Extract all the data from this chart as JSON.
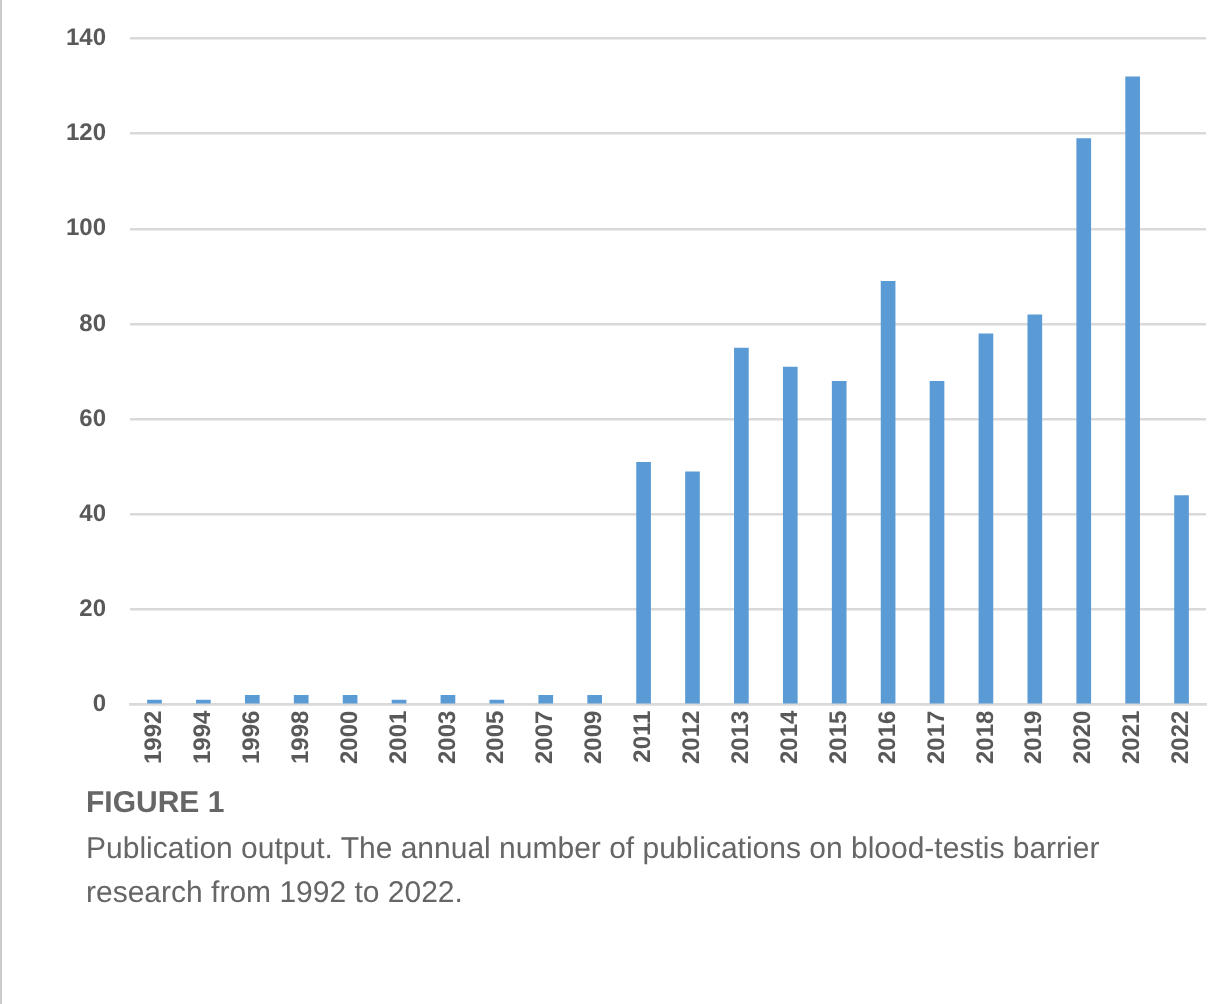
{
  "chart_data": {
    "type": "bar",
    "title": "FIGURE 1",
    "annotations": [
      "Publication output. The annual number of publications on blood-testis barrier research from 1992 to 2022."
    ],
    "categories": [
      "1992",
      "1994",
      "1996",
      "1998",
      "2000",
      "2001",
      "2003",
      "2005",
      "2007",
      "2009",
      "2011",
      "2012",
      "2013",
      "2014",
      "2015",
      "2016",
      "2017",
      "2018",
      "2019",
      "2020",
      "2021",
      "2022"
    ],
    "values": [
      1,
      1,
      2,
      2,
      2,
      1,
      2,
      1,
      2,
      2,
      51,
      49,
      75,
      71,
      68,
      89,
      68,
      78,
      82,
      119,
      132,
      44
    ],
    "color": "#5b9bd5",
    "ylim": [
      0,
      140
    ],
    "yticks": [
      0,
      20,
      40,
      60,
      80,
      100,
      120,
      140
    ],
    "grid": "y"
  }
}
